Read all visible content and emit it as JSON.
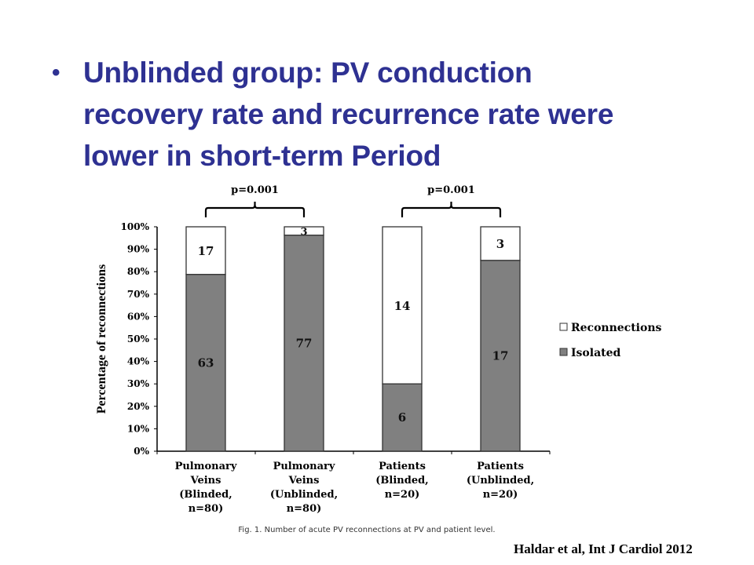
{
  "slide": {
    "bullet": "•",
    "title_lines": [
      "Unblinded group: PV conduction",
      "recovery rate and recurrence rate were",
      "lower in short-term Period"
    ],
    "citation": "Haldar et al, Int J Cardiol 2012"
  },
  "colors": {
    "title": "#2e3192",
    "isolated": "#808080",
    "reconnections": "#ffffff"
  },
  "chart_data": {
    "type": "bar",
    "stacked": true,
    "percent": true,
    "title": "",
    "ylabel": "Percentage of reconnections",
    "xlabel": "",
    "ylim": [
      0,
      100
    ],
    "yticks": [
      "0%",
      "10%",
      "20%",
      "30%",
      "40%",
      "50%",
      "60%",
      "70%",
      "80%",
      "90%",
      "100%"
    ],
    "categories": [
      [
        "Pulmonary",
        "Veins",
        "(Blinded,",
        "n=80)"
      ],
      [
        "Pulmonary",
        "Veins",
        "(Unblinded,",
        "n=80)"
      ],
      [
        "Patients",
        "(Blinded,",
        "n=20)"
      ],
      [
        "Patients",
        "(Unblinded,",
        "n=20)"
      ]
    ],
    "series": [
      {
        "name": "Isolated",
        "values": [
          63,
          77,
          6,
          17
        ],
        "labels": [
          "63",
          "77",
          "6",
          "17"
        ]
      },
      {
        "name": "Reconnections",
        "values": [
          17,
          3,
          14,
          3
        ],
        "labels": [
          "17",
          "3",
          "14",
          "3"
        ]
      }
    ],
    "legend": [
      "Reconnections",
      "Isolated"
    ],
    "legend_position": "right",
    "annotations": [
      {
        "text": "p=0.001",
        "between": [
          0,
          1
        ]
      },
      {
        "text": "p=0.001",
        "between": [
          2,
          3
        ]
      }
    ],
    "caption": "Fig. 1. Number of acute PV reconnections at PV and patient level."
  }
}
